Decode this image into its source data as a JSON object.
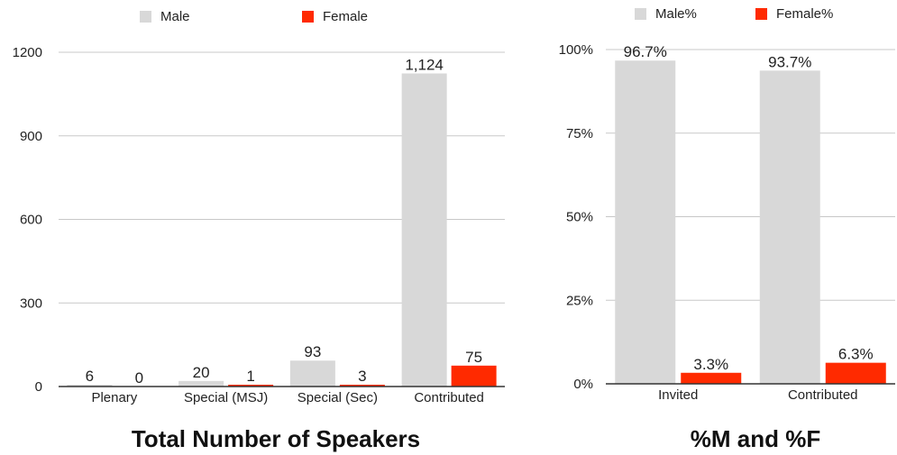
{
  "colors": {
    "male": "#d8d8d8",
    "female": "#ff2a00",
    "grid": "#c8c8c8",
    "axis": "#333333"
  },
  "chart_data": [
    {
      "type": "bar",
      "title": "Total Number of Speakers",
      "categories": [
        "Plenary",
        "Special (MSJ)",
        "Special (Sec)",
        "Contributed"
      ],
      "series": [
        {
          "name": "Male",
          "values": [
            6,
            20,
            93,
            1124
          ],
          "labels": [
            "6",
            "20",
            "93",
            "1,124"
          ]
        },
        {
          "name": "Female",
          "values": [
            0,
            1,
            3,
            75
          ],
          "labels": [
            "0",
            "1",
            "3",
            "75"
          ]
        }
      ],
      "ylim": [
        0,
        1200
      ],
      "yticks": [
        "0",
        "300",
        "600",
        "900",
        "1200"
      ],
      "ytick_values": [
        0,
        300,
        600,
        900,
        1200
      ],
      "grid": true,
      "legend": "top"
    },
    {
      "type": "bar",
      "title": "%M and %F",
      "categories": [
        "Invited",
        "Contributed"
      ],
      "series": [
        {
          "name": "Male%",
          "values": [
            96.7,
            93.7
          ],
          "labels": [
            "96.7%",
            "93.7%"
          ]
        },
        {
          "name": "Female%",
          "values": [
            3.3,
            6.3
          ],
          "labels": [
            "3.3%",
            "6.3%"
          ]
        }
      ],
      "ylim": [
        0,
        100
      ],
      "yticks": [
        "0%",
        "25%",
        "50%",
        "75%",
        "100%"
      ],
      "ytick_values": [
        0,
        25,
        50,
        75,
        100
      ],
      "grid": true,
      "legend": "top"
    }
  ]
}
